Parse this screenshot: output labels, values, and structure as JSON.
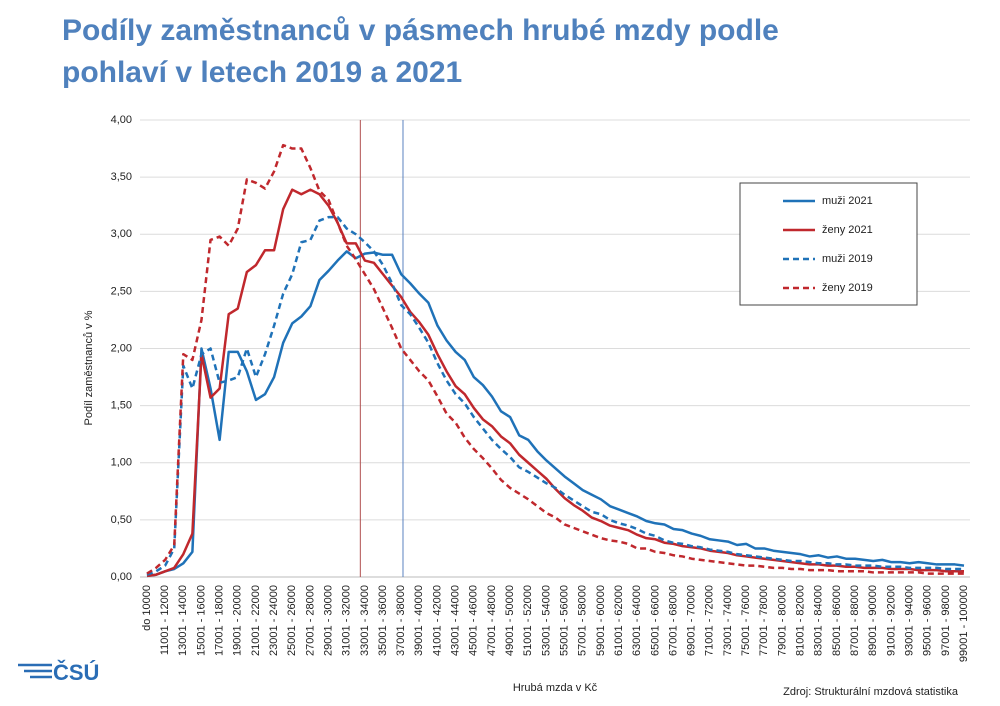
{
  "chart_data": {
    "type": "line",
    "title_lines": [
      "Podíly zaměstnanců v pásmech hrubé mzdy podle",
      "pohlaví v letech 2019 a 2021"
    ],
    "x_label": "Hrubá mzda v Kč",
    "y_label": "Podíl zaměstnanců v %",
    "source": "Zdroj: Strukturální mzdová statistika",
    "logo": "ČSÚ",
    "categories": [
      "do 10000",
      null,
      "11001 - 12000",
      null,
      "13001 - 14000",
      null,
      "15001 - 16000",
      null,
      "17001 - 18000",
      null,
      "19001 - 20000",
      null,
      "21001 - 22000",
      null,
      "23001 - 24000",
      null,
      "25001 - 26000",
      null,
      "27001 - 28000",
      null,
      "29001 - 30000",
      null,
      "31001 - 32000",
      null,
      "33001 - 34000",
      null,
      "35001 - 36000",
      null,
      "37001 - 38000",
      null,
      "39001 - 40000",
      null,
      "41001 - 42000",
      null,
      "43001 - 44000",
      null,
      "45001 - 46000",
      null,
      "47001 - 48000",
      null,
      "49001 - 50000",
      null,
      "51001 - 52000",
      null,
      "53001 - 54000",
      null,
      "55001 - 56000",
      null,
      "57001 - 58000",
      null,
      "59001 - 60000",
      null,
      "61001 - 62000",
      null,
      "63001 - 64000",
      null,
      "65001 - 66000",
      null,
      "67001 - 68000",
      null,
      "69001 - 70000",
      null,
      "71001 - 72000",
      null,
      "73001 - 74000",
      null,
      "75001 - 76000",
      null,
      "77001 - 78000",
      null,
      "79001 - 80000",
      null,
      "81001 - 82000",
      null,
      "83001 - 84000",
      null,
      "85001 - 86000",
      null,
      "87001 - 88000",
      null,
      "89001 - 90000",
      null,
      "91001 - 92000",
      null,
      "93001 - 94000",
      null,
      "95001 - 96000",
      null,
      "97001 - 98000",
      null,
      "99001 - 100000"
    ],
    "series": [
      {
        "name": "muži 2021",
        "color": "#1f72b8",
        "dash": false,
        "values": [
          0.01,
          0.02,
          0.05,
          0.07,
          0.12,
          0.22,
          2.0,
          1.65,
          1.2,
          1.97,
          1.97,
          1.8,
          1.55,
          1.6,
          1.75,
          2.05,
          2.22,
          2.28,
          2.37,
          2.6,
          2.68,
          2.77,
          2.85,
          2.79,
          2.83,
          2.84,
          2.82,
          2.82,
          2.65,
          2.57,
          2.48,
          2.4,
          2.2,
          2.07,
          1.97,
          1.9,
          1.75,
          1.68,
          1.58,
          1.45,
          1.4,
          1.24,
          1.2,
          1.1,
          1.02,
          0.95,
          0.88,
          0.82,
          0.76,
          0.72,
          0.68,
          0.62,
          0.59,
          0.56,
          0.53,
          0.49,
          0.47,
          0.46,
          0.42,
          0.41,
          0.38,
          0.36,
          0.33,
          0.32,
          0.31,
          0.28,
          0.29,
          0.25,
          0.25,
          0.23,
          0.22,
          0.21,
          0.2,
          0.18,
          0.19,
          0.17,
          0.18,
          0.16,
          0.16,
          0.15,
          0.14,
          0.15,
          0.13,
          0.13,
          0.12,
          0.13,
          0.12,
          0.11,
          0.11,
          0.11,
          0.1
        ]
      },
      {
        "name": "ženy 2021",
        "color": "#c0282d",
        "dash": false,
        "values": [
          0.01,
          0.02,
          0.05,
          0.08,
          0.2,
          0.38,
          1.95,
          1.57,
          1.65,
          2.3,
          2.35,
          2.67,
          2.73,
          2.86,
          2.86,
          3.22,
          3.39,
          3.35,
          3.39,
          3.35,
          3.25,
          3.1,
          2.92,
          2.92,
          2.77,
          2.75,
          2.65,
          2.55,
          2.45,
          2.32,
          2.23,
          2.12,
          1.95,
          1.8,
          1.67,
          1.6,
          1.48,
          1.38,
          1.32,
          1.23,
          1.17,
          1.07,
          1.0,
          0.93,
          0.86,
          0.77,
          0.69,
          0.63,
          0.58,
          0.52,
          0.49,
          0.45,
          0.43,
          0.41,
          0.37,
          0.34,
          0.33,
          0.3,
          0.29,
          0.27,
          0.26,
          0.25,
          0.23,
          0.22,
          0.21,
          0.19,
          0.18,
          0.17,
          0.16,
          0.15,
          0.14,
          0.13,
          0.12,
          0.11,
          0.11,
          0.1,
          0.1,
          0.09,
          0.09,
          0.08,
          0.08,
          0.08,
          0.07,
          0.07,
          0.07,
          0.06,
          0.06,
          0.06,
          0.05,
          0.05,
          0.05
        ]
      },
      {
        "name": "muži 2019",
        "color": "#1f72b8",
        "dash": true,
        "values": [
          0.02,
          0.05,
          0.1,
          0.25,
          1.85,
          1.65,
          1.95,
          2.0,
          1.7,
          1.72,
          1.75,
          2.0,
          1.75,
          1.95,
          2.2,
          2.48,
          2.65,
          2.93,
          2.95,
          3.12,
          3.15,
          3.15,
          3.05,
          3.0,
          2.93,
          2.85,
          2.73,
          2.57,
          2.38,
          2.3,
          2.18,
          2.05,
          1.87,
          1.72,
          1.6,
          1.52,
          1.4,
          1.3,
          1.2,
          1.12,
          1.05,
          0.96,
          0.92,
          0.87,
          0.82,
          0.78,
          0.72,
          0.67,
          0.62,
          0.57,
          0.55,
          0.5,
          0.47,
          0.45,
          0.42,
          0.38,
          0.36,
          0.32,
          0.3,
          0.29,
          0.27,
          0.26,
          0.24,
          0.23,
          0.22,
          0.2,
          0.19,
          0.18,
          0.17,
          0.16,
          0.15,
          0.14,
          0.14,
          0.13,
          0.12,
          0.12,
          0.11,
          0.11,
          0.1,
          0.1,
          0.1,
          0.09,
          0.09,
          0.09,
          0.08,
          0.08,
          0.08,
          0.08,
          0.07,
          0.07,
          0.07
        ]
      },
      {
        "name": "ženy 2019",
        "color": "#c0282d",
        "dash": true,
        "values": [
          0.03,
          0.08,
          0.15,
          0.28,
          1.95,
          1.9,
          2.25,
          2.95,
          2.98,
          2.9,
          3.05,
          3.48,
          3.45,
          3.4,
          3.55,
          3.78,
          3.75,
          3.75,
          3.58,
          3.38,
          3.3,
          3.1,
          2.9,
          2.78,
          2.65,
          2.52,
          2.35,
          2.18,
          2.0,
          1.9,
          1.8,
          1.72,
          1.58,
          1.43,
          1.35,
          1.22,
          1.12,
          1.04,
          0.95,
          0.85,
          0.78,
          0.73,
          0.68,
          0.62,
          0.56,
          0.52,
          0.46,
          0.43,
          0.4,
          0.37,
          0.34,
          0.32,
          0.31,
          0.29,
          0.25,
          0.25,
          0.22,
          0.21,
          0.19,
          0.18,
          0.16,
          0.15,
          0.14,
          0.13,
          0.12,
          0.11,
          0.1,
          0.1,
          0.09,
          0.08,
          0.08,
          0.07,
          0.07,
          0.06,
          0.06,
          0.06,
          0.05,
          0.05,
          0.05,
          0.05,
          0.04,
          0.04,
          0.04,
          0.04,
          0.04,
          0.04,
          0.03,
          0.03,
          0.03,
          0.03,
          0.03
        ]
      }
    ],
    "reference_lines": [
      {
        "x": 23.5,
        "color": "#b05050"
      },
      {
        "x": 28.2,
        "color": "#5a82c0"
      }
    ],
    "ylim": [
      0,
      4
    ],
    "yticks": [
      {
        "value": 0,
        "label": "0,00"
      },
      {
        "value": 0.5,
        "label": "0,50"
      },
      {
        "value": 1,
        "label": "1,00"
      },
      {
        "value": 1.5,
        "label": "1,50"
      },
      {
        "value": 2,
        "label": "2,00"
      },
      {
        "value": 2.5,
        "label": "2,50"
      },
      {
        "value": 3,
        "label": "3,00"
      },
      {
        "value": 3.5,
        "label": "3,50"
      },
      {
        "value": 4,
        "label": "4,00"
      }
    ],
    "grid": true,
    "legend": "upper right"
  }
}
